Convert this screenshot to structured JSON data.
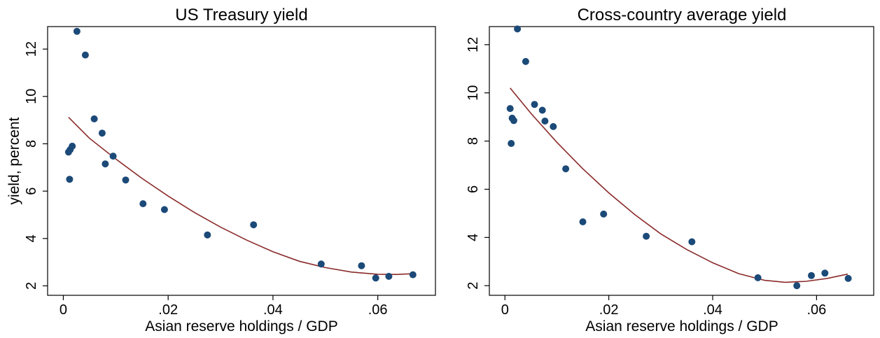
{
  "chart_data": [
    {
      "type": "scatter",
      "title": "US Treasury yield",
      "xlabel": "Asian reserve holdings / GDP",
      "ylabel": "yield, percent",
      "xlim": [
        -0.003,
        0.071
      ],
      "ylim": [
        1.6,
        12.95
      ],
      "xticks": [
        0,
        0.02,
        0.04,
        0.06
      ],
      "xtick_labels": [
        "0",
        ".02",
        ".04",
        ".06"
      ],
      "yticks": [
        2,
        4,
        6,
        8,
        10,
        12
      ],
      "ytick_labels": [
        "2",
        "4",
        "6",
        "8",
        "10",
        "12"
      ],
      "grid": false,
      "marker_color": "#1c4a78",
      "fit_color": "#8b2a2a",
      "points": [
        {
          "x": 0.001,
          "y": 7.65
        },
        {
          "x": 0.0013,
          "y": 7.75
        },
        {
          "x": 0.0017,
          "y": 7.9
        },
        {
          "x": 0.0012,
          "y": 6.5
        },
        {
          "x": 0.0026,
          "y": 12.75
        },
        {
          "x": 0.0042,
          "y": 11.75
        },
        {
          "x": 0.0059,
          "y": 9.05
        },
        {
          "x": 0.0074,
          "y": 8.45
        },
        {
          "x": 0.008,
          "y": 7.15
        },
        {
          "x": 0.0095,
          "y": 7.48
        },
        {
          "x": 0.0119,
          "y": 6.47
        },
        {
          "x": 0.0152,
          "y": 5.47
        },
        {
          "x": 0.0193,
          "y": 5.22
        },
        {
          "x": 0.0275,
          "y": 4.15
        },
        {
          "x": 0.0363,
          "y": 4.58
        },
        {
          "x": 0.0492,
          "y": 2.92
        },
        {
          "x": 0.0569,
          "y": 2.85
        },
        {
          "x": 0.0596,
          "y": 2.33
        },
        {
          "x": 0.0621,
          "y": 2.4
        },
        {
          "x": 0.0667,
          "y": 2.47
        }
      ],
      "fit_curve": [
        {
          "x": 0.001,
          "y": 9.12
        },
        {
          "x": 0.005,
          "y": 8.23
        },
        {
          "x": 0.01,
          "y": 7.36
        },
        {
          "x": 0.015,
          "y": 6.54
        },
        {
          "x": 0.02,
          "y": 5.79
        },
        {
          "x": 0.025,
          "y": 5.1
        },
        {
          "x": 0.03,
          "y": 4.48
        },
        {
          "x": 0.035,
          "y": 3.93
        },
        {
          "x": 0.04,
          "y": 3.44
        },
        {
          "x": 0.045,
          "y": 3.04
        },
        {
          "x": 0.05,
          "y": 2.77
        },
        {
          "x": 0.055,
          "y": 2.58
        },
        {
          "x": 0.06,
          "y": 2.49
        },
        {
          "x": 0.0635,
          "y": 2.48
        },
        {
          "x": 0.0665,
          "y": 2.51
        }
      ]
    },
    {
      "type": "scatter",
      "title": "Cross-country average yield",
      "xlabel": "Asian reserve holdings / GDP",
      "ylabel": "",
      "xlim": [
        -0.003,
        0.071
      ],
      "ylim": [
        1.6,
        12.75
      ],
      "xticks": [
        0,
        0.02,
        0.04,
        0.06
      ],
      "xtick_labels": [
        "0",
        ".02",
        ".04",
        ".06"
      ],
      "yticks": [
        2,
        4,
        6,
        8,
        10,
        12
      ],
      "ytick_labels": [
        "2",
        "4",
        "6",
        "8",
        "10",
        "12"
      ],
      "grid": false,
      "marker_color": "#1c4a78",
      "fit_color": "#8b2a2a",
      "points": [
        {
          "x": 0.001,
          "y": 9.35
        },
        {
          "x": 0.0014,
          "y": 8.95
        },
        {
          "x": 0.0017,
          "y": 8.85
        },
        {
          "x": 0.0012,
          "y": 7.9
        },
        {
          "x": 0.0024,
          "y": 12.65
        },
        {
          "x": 0.004,
          "y": 11.3
        },
        {
          "x": 0.0057,
          "y": 9.52
        },
        {
          "x": 0.0072,
          "y": 9.28
        },
        {
          "x": 0.0077,
          "y": 8.83
        },
        {
          "x": 0.0093,
          "y": 8.6
        },
        {
          "x": 0.0117,
          "y": 6.85
        },
        {
          "x": 0.015,
          "y": 4.65
        },
        {
          "x": 0.019,
          "y": 4.97
        },
        {
          "x": 0.0272,
          "y": 4.05
        },
        {
          "x": 0.036,
          "y": 3.82
        },
        {
          "x": 0.0487,
          "y": 2.33
        },
        {
          "x": 0.0562,
          "y": 2.0
        },
        {
          "x": 0.059,
          "y": 2.42
        },
        {
          "x": 0.0616,
          "y": 2.52
        },
        {
          "x": 0.0661,
          "y": 2.3
        }
      ],
      "fit_curve": [
        {
          "x": 0.001,
          "y": 10.2
        },
        {
          "x": 0.005,
          "y": 9.15
        },
        {
          "x": 0.01,
          "y": 7.95
        },
        {
          "x": 0.015,
          "y": 6.85
        },
        {
          "x": 0.02,
          "y": 5.85
        },
        {
          "x": 0.025,
          "y": 4.95
        },
        {
          "x": 0.03,
          "y": 4.15
        },
        {
          "x": 0.035,
          "y": 3.5
        },
        {
          "x": 0.04,
          "y": 2.95
        },
        {
          "x": 0.045,
          "y": 2.5
        },
        {
          "x": 0.05,
          "y": 2.22
        },
        {
          "x": 0.054,
          "y": 2.14
        },
        {
          "x": 0.058,
          "y": 2.18
        },
        {
          "x": 0.062,
          "y": 2.3
        },
        {
          "x": 0.066,
          "y": 2.48
        }
      ]
    }
  ]
}
